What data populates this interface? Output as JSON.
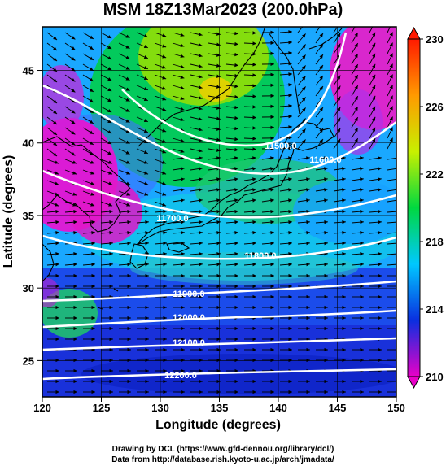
{
  "title": "MSM 18Z13Mar2023 (200.0hPa)",
  "axes": {
    "xlabel": "Longitude (degrees)",
    "ylabel": "Latitude  (degrees)",
    "x_range": [
      120,
      150
    ],
    "y_range": [
      22.5,
      48
    ],
    "x_ticks": [
      "120",
      "125",
      "130",
      "135",
      "140",
      "145",
      "150"
    ],
    "y_ticks": [
      "25",
      "30",
      "35",
      "40",
      "45"
    ]
  },
  "colorbar": {
    "range": [
      210,
      230
    ],
    "tick_labels": [
      "210",
      "214",
      "218",
      "222",
      "226",
      "230"
    ],
    "stops": [
      "#e800c8",
      "#0a2fe0",
      "#00c8ff",
      "#00d840",
      "#c8f000",
      "#ff9a00",
      "#ff1a00"
    ]
  },
  "contours": [
    {
      "label": "11500.0"
    },
    {
      "label": "11600.0"
    },
    {
      "label": "11700.0"
    },
    {
      "label": "11800.0"
    },
    {
      "label": "11900.0"
    },
    {
      "label": "12000.0"
    },
    {
      "label": "12100.0"
    },
    {
      "label": "12200.0"
    }
  ],
  "credits": {
    "line1": "Drawing by DCL (https://www.gfd-dennou.org/library/dcl/)",
    "line2": "Data from http://database.rish.kyoto-u.ac.jp/arch/jmadata/"
  }
}
